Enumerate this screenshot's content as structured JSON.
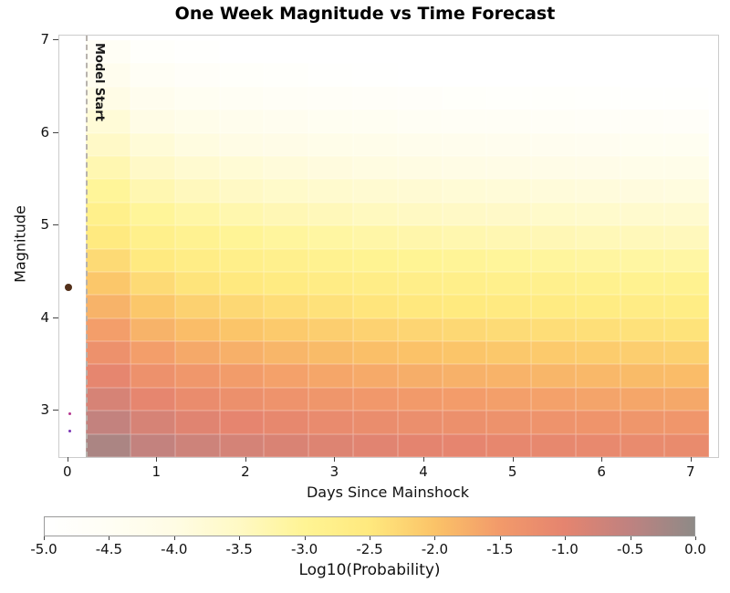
{
  "chart_data": {
    "type": "heatmap",
    "title": "One Week Magnitude vs Time Forecast",
    "xlabel": "Days Since Mainshock",
    "ylabel": "Magnitude",
    "colorbar_label": "Log10(Probability)",
    "model_start": {
      "x": 0.2,
      "label": "Model Start",
      "line_color": "#b8b3ae"
    },
    "axes": {
      "x_range": [
        -0.1,
        7.3
      ],
      "y_range": [
        2.5,
        7.05
      ],
      "x_ticks": [
        0,
        1,
        2,
        3,
        4,
        5,
        6,
        7
      ],
      "x_tick_labels": [
        "0",
        "1",
        "2",
        "3",
        "4",
        "5",
        "6",
        "7"
      ],
      "y_ticks": [
        3,
        4,
        5,
        6,
        7
      ],
      "y_tick_labels": [
        "3",
        "4",
        "5",
        "6",
        "7"
      ],
      "grid": false
    },
    "heatmap": {
      "time_bin_edges_days": [
        0.2,
        0.7,
        1.2,
        1.7,
        2.2,
        2.7,
        3.2,
        3.7,
        4.2,
        4.7,
        5.2,
        5.7,
        6.2,
        6.7,
        7.2
      ],
      "mag_bin_edges": [
        2.5,
        2.75,
        3.0,
        3.25,
        3.5,
        3.75,
        4.0,
        4.25,
        4.5,
        4.75,
        5.0,
        5.25,
        5.5,
        5.75,
        6.0,
        6.25,
        6.5,
        6.75,
        7.0
      ],
      "log10_probability_rows_low_to_high_mag": [
        [
          -0.3,
          -0.55,
          -0.68,
          -0.77,
          -0.84,
          -0.9,
          -0.95,
          -0.99,
          -1.03,
          -1.06,
          -1.09,
          -1.12,
          -1.15,
          -1.17
        ],
        [
          -0.55,
          -0.8,
          -0.93,
          -1.02,
          -1.09,
          -1.15,
          -1.2,
          -1.24,
          -1.28,
          -1.31,
          -1.34,
          -1.37,
          -1.4,
          -1.42
        ],
        [
          -0.8,
          -1.05,
          -1.18,
          -1.27,
          -1.34,
          -1.4,
          -1.45,
          -1.49,
          -1.53,
          -1.56,
          -1.59,
          -1.62,
          -1.65,
          -1.67
        ],
        [
          -1.05,
          -1.3,
          -1.43,
          -1.52,
          -1.59,
          -1.65,
          -1.7,
          -1.74,
          -1.78,
          -1.81,
          -1.84,
          -1.87,
          -1.9,
          -1.92
        ],
        [
          -1.3,
          -1.55,
          -1.68,
          -1.77,
          -1.84,
          -1.9,
          -1.95,
          -1.99,
          -2.03,
          -2.06,
          -2.09,
          -2.12,
          -2.15,
          -2.17
        ],
        [
          -1.55,
          -1.8,
          -1.93,
          -2.02,
          -2.09,
          -2.15,
          -2.2,
          -2.24,
          -2.28,
          -2.31,
          -2.34,
          -2.37,
          -2.4,
          -2.42
        ],
        [
          -1.8,
          -2.05,
          -2.18,
          -2.27,
          -2.34,
          -2.4,
          -2.45,
          -2.49,
          -2.53,
          -2.56,
          -2.59,
          -2.62,
          -2.65,
          -2.67
        ],
        [
          -2.05,
          -2.3,
          -2.43,
          -2.52,
          -2.59,
          -2.65,
          -2.7,
          -2.74,
          -2.78,
          -2.81,
          -2.84,
          -2.87,
          -2.9,
          -2.92
        ],
        [
          -2.3,
          -2.55,
          -2.68,
          -2.77,
          -2.84,
          -2.9,
          -2.95,
          -2.99,
          -3.03,
          -3.06,
          -3.09,
          -3.12,
          -3.15,
          -3.17
        ],
        [
          -2.55,
          -2.8,
          -2.93,
          -3.02,
          -3.09,
          -3.15,
          -3.2,
          -3.24,
          -3.28,
          -3.31,
          -3.34,
          -3.37,
          -3.4,
          -3.42
        ],
        [
          -2.8,
          -3.05,
          -3.18,
          -3.27,
          -3.34,
          -3.4,
          -3.45,
          -3.49,
          -3.53,
          -3.56,
          -3.59,
          -3.62,
          -3.65,
          -3.67
        ],
        [
          -3.05,
          -3.3,
          -3.43,
          -3.52,
          -3.59,
          -3.65,
          -3.7,
          -3.74,
          -3.78,
          -3.81,
          -3.84,
          -3.87,
          -3.9,
          -3.92
        ],
        [
          -3.3,
          -3.55,
          -3.68,
          -3.77,
          -3.84,
          -3.9,
          -3.95,
          -3.99,
          -4.03,
          -4.06,
          -4.09,
          -4.12,
          -4.15,
          -4.17
        ],
        [
          -3.55,
          -3.8,
          -3.93,
          -4.02,
          -4.09,
          -4.15,
          -4.2,
          -4.24,
          -4.28,
          -4.31,
          -4.34,
          -4.37,
          -4.4,
          -4.42
        ],
        [
          -3.8,
          -4.05,
          -4.18,
          -4.27,
          -4.34,
          -4.4,
          -4.45,
          -4.49,
          -4.53,
          -4.56,
          -4.59,
          -4.62,
          -4.65,
          -4.67
        ],
        [
          -4.05,
          -4.3,
          -4.43,
          -4.52,
          -4.59,
          -4.65,
          -4.7,
          -4.74,
          -4.78,
          -4.81,
          -4.84,
          -4.87,
          -4.9,
          -4.92
        ],
        [
          -4.3,
          -4.55,
          -4.68,
          -4.77,
          -4.84,
          -4.9,
          -4.95,
          -4.99,
          -5.03,
          -5.06,
          -5.09,
          -5.12,
          -5.15,
          -5.17
        ],
        [
          -4.55,
          -4.8,
          -4.93,
          -5.02,
          -5.09,
          -5.15,
          -5.2,
          -5.24,
          -5.28,
          -5.31,
          -5.34,
          -5.37,
          -5.4,
          -5.42
        ]
      ]
    },
    "events": [
      {
        "day": 0.0,
        "magnitude": 4.33,
        "color": "#53301a",
        "radius": 4
      },
      {
        "day": 0.02,
        "magnitude": 2.97,
        "color": "#b5368f",
        "radius": 1.5
      },
      {
        "day": 0.02,
        "magnitude": 2.78,
        "color": "#7a35b5",
        "radius": 1.5
      }
    ],
    "colorbar": {
      "min": -5.0,
      "max": 0.0,
      "tick_values": [
        -5.0,
        -4.5,
        -4.0,
        -3.5,
        -3.0,
        -2.5,
        -2.0,
        -1.5,
        -1.0,
        -0.5,
        0.0
      ],
      "tick_labels": [
        "-5.0",
        "-4.5",
        "-4.0",
        "-3.5",
        "-3.0",
        "-2.5",
        "-2.0",
        "-1.5",
        "-1.0",
        "-0.5",
        "0.0"
      ],
      "color_stops": [
        {
          "value": -5.0,
          "color": "#ffffff"
        },
        {
          "value": -4.5,
          "color": "#fffef4"
        },
        {
          "value": -4.0,
          "color": "#fffce4"
        },
        {
          "value": -3.5,
          "color": "#fff9c4"
        },
        {
          "value": -3.0,
          "color": "#fff494"
        },
        {
          "value": -2.5,
          "color": "#ffe97e"
        },
        {
          "value": -2.0,
          "color": "#fbc368"
        },
        {
          "value": -1.5,
          "color": "#f29a6a"
        },
        {
          "value": -1.0,
          "color": "#e5846f"
        },
        {
          "value": -0.5,
          "color": "#bf8280"
        },
        {
          "value": 0.0,
          "color": "#8e8a87"
        }
      ]
    }
  }
}
